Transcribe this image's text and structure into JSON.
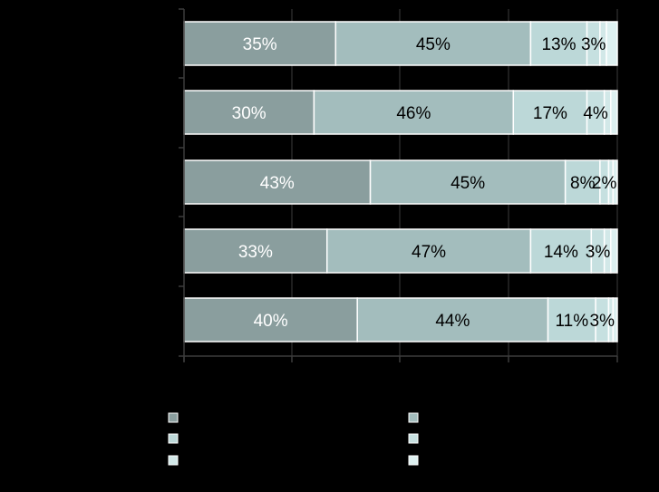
{
  "chart_data": {
    "type": "bar",
    "orientation": "horizontal",
    "stacked": "100%",
    "categories": [
      "",
      "",
      "",
      "",
      ""
    ],
    "series": [
      {
        "values": [
          35,
          30,
          43,
          33,
          40
        ],
        "labels": [
          "35%",
          "30%",
          "43%",
          "33%",
          "40%"
        ],
        "label_color": "#ffffff"
      },
      {
        "values": [
          45,
          46,
          45,
          47,
          44
        ],
        "labels": [
          "45%",
          "46%",
          "45%",
          "47%",
          "44%"
        ],
        "label_color": "#000000"
      },
      {
        "values": [
          13,
          17,
          8,
          14,
          11
        ],
        "labels": [
          "13%",
          "17%",
          "8%",
          "14%",
          "11%"
        ],
        "label_color": "#000000"
      },
      {
        "values": [
          3,
          4,
          2,
          3,
          3
        ],
        "labels": [
          "3%",
          "4%",
          "2%",
          "3%",
          "3%"
        ],
        "label_color": "#000000"
      },
      {
        "values": [
          1.5,
          1.5,
          1.0,
          1.5,
          1.0
        ],
        "labels": [
          "",
          "",
          "",
          "",
          ""
        ],
        "label_color": "#000000"
      },
      {
        "values": [
          2.5,
          1.5,
          1.0,
          1.5,
          1.0
        ],
        "labels": [
          "",
          "",
          "",
          "",
          ""
        ],
        "label_color": "#000000"
      }
    ],
    "xlim": [
      0,
      100
    ],
    "grid": true,
    "legend_position": "bottom",
    "colors": {
      "series": [
        "#8a9e9e",
        "#a3bdbd",
        "#bcd8d8",
        "#c6e0e0",
        "#d2e8e8",
        "#ddf0f0"
      ],
      "background": "#000000",
      "axis": "#3c3c3c",
      "bar_outline": "#ffffff"
    }
  }
}
